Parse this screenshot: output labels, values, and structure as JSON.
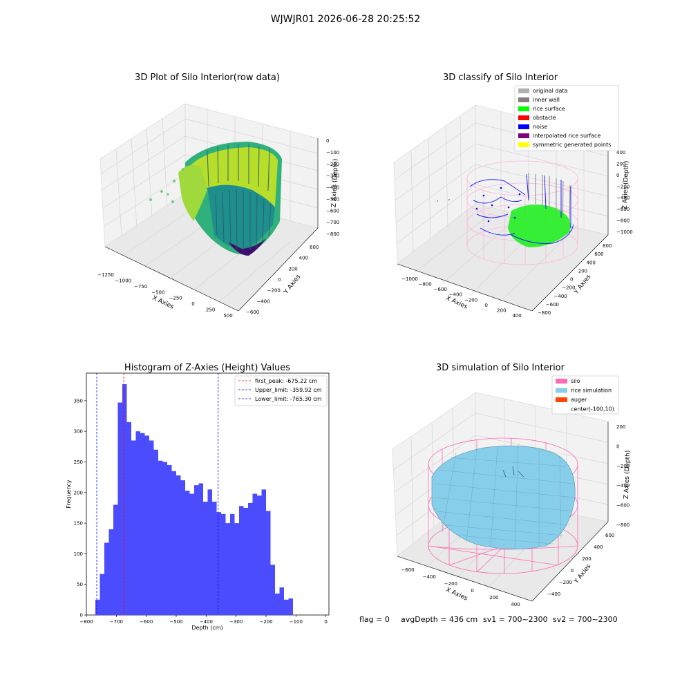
{
  "suptitle": "WJWJR01 2026-06-28 20:25:52",
  "footer": {
    "flag": "flag = 0",
    "avg_depth": "avgDepth = 436 cm",
    "sv1": "sv1 = 700~2300",
    "sv2": "sv2 = 700~2300"
  },
  "colors": {
    "bar": "#4c4cff",
    "first_peak": "#ff0000",
    "limit": "#0000ff",
    "silo": "#ff69b4",
    "rice": "#87ceeb",
    "auger": "#ff4500",
    "inner_wall": "#808080",
    "rice_surface": "#00ff00",
    "noise": "#0000ff"
  },
  "plot1": {
    "title": "3D Plot of Silo Interior(row data)",
    "xlabel": "X Axies",
    "ylabel": "Y Axies",
    "zlabel": "Z Axies (Depth)",
    "xticks": [
      "−1250",
      "−1000",
      "−750",
      "−500",
      "−250",
      "0",
      "250",
      "500"
    ],
    "yticks": [
      "−600",
      "−400",
      "−200",
      "0",
      "200",
      "400",
      "600"
    ],
    "zticks": [
      "0",
      "−100",
      "−200",
      "−300",
      "−400",
      "−500",
      "−600",
      "−700",
      "−800"
    ]
  },
  "plot2": {
    "title": "3D classify of Silo Interior",
    "xlabel": "X Axies",
    "ylabel": "Y Axies",
    "zlabel": "Z Axies (Depth)",
    "xticks": [
      "−1000",
      "−800",
      "−600",
      "−400",
      "−200",
      "0",
      "200",
      "400"
    ],
    "yticks": [
      "−800",
      "−600",
      "−400",
      "−200",
      "0",
      "200",
      "400",
      "600",
      "800"
    ],
    "zticks": [
      "400",
      "200",
      "0",
      "−200",
      "−400",
      "−600",
      "−800",
      "−1000"
    ],
    "legend": [
      {
        "label": "original data",
        "color": "#b0b0b0"
      },
      {
        "label": "inner wall",
        "color": "#808080"
      },
      {
        "label": "rice surface",
        "color": "#00ff00"
      },
      {
        "label": "obstacle",
        "color": "#ff0000"
      },
      {
        "label": "noise",
        "color": "#0000ff"
      },
      {
        "label": "interpolated rice surface",
        "color": "#800080"
      },
      {
        "label": "symmetric generated points",
        "color": "#ffff00"
      }
    ]
  },
  "plot4": {
    "title": "3D simulation of Silo Interior",
    "xlabel": "X Axies",
    "ylabel": "Y Axies",
    "zlabel": "Z Axies (Depth)",
    "xticks": [
      "−600",
      "−400",
      "−200",
      "0",
      "200",
      "400"
    ],
    "yticks": [
      "−400",
      "−200",
      "0",
      "200",
      "400",
      "600"
    ],
    "zticks": [
      "200",
      "0",
      "−200",
      "−400",
      "−600",
      "−800"
    ],
    "legend": [
      {
        "label": "silo",
        "color": "#ff69b4"
      },
      {
        "label": "rice simulation",
        "color": "#87ceeb"
      },
      {
        "label": "auger",
        "color": "#ff4500"
      },
      {
        "label": "center(-100,10)",
        "color": ""
      }
    ]
  },
  "chart_data": {
    "type": "bar",
    "title": "Histogram of Z-Axies (Height) Values",
    "xlabel": "Depth (cm)",
    "ylabel": "Frequency",
    "xlim": [
      -800,
      10
    ],
    "ylim": [
      0,
      395
    ],
    "xticks": [
      -800,
      -700,
      -600,
      -500,
      -400,
      -300,
      -200,
      -100,
      0
    ],
    "xtick_labels": [
      "−800",
      "−700",
      "−600",
      "−500",
      "−400",
      "−300",
      "−200",
      "−100",
      "0"
    ],
    "yticks": [
      0,
      50,
      100,
      150,
      200,
      250,
      300,
      350
    ],
    "bin_start": -770,
    "bin_width": 15,
    "values": [
      25,
      67,
      118,
      140,
      180,
      347,
      377,
      315,
      285,
      300,
      297,
      293,
      285,
      270,
      252,
      250,
      245,
      235,
      228,
      220,
      203,
      198,
      212,
      215,
      185,
      205,
      185,
      168,
      165,
      150,
      165,
      150,
      178,
      175,
      183,
      198,
      195,
      205,
      170,
      82,
      35,
      45,
      25,
      27
    ],
    "lines": [
      {
        "label": "first_peak: -675.22 cm",
        "value": -675.22,
        "color": "#ff0000"
      },
      {
        "label": "Upper_limit: -359.92 cm",
        "value": -359.92,
        "color": "#0000ff"
      },
      {
        "label": "Lower_limit: -765.30 cm",
        "value": -765.3,
        "color": "#0000ff"
      }
    ]
  }
}
